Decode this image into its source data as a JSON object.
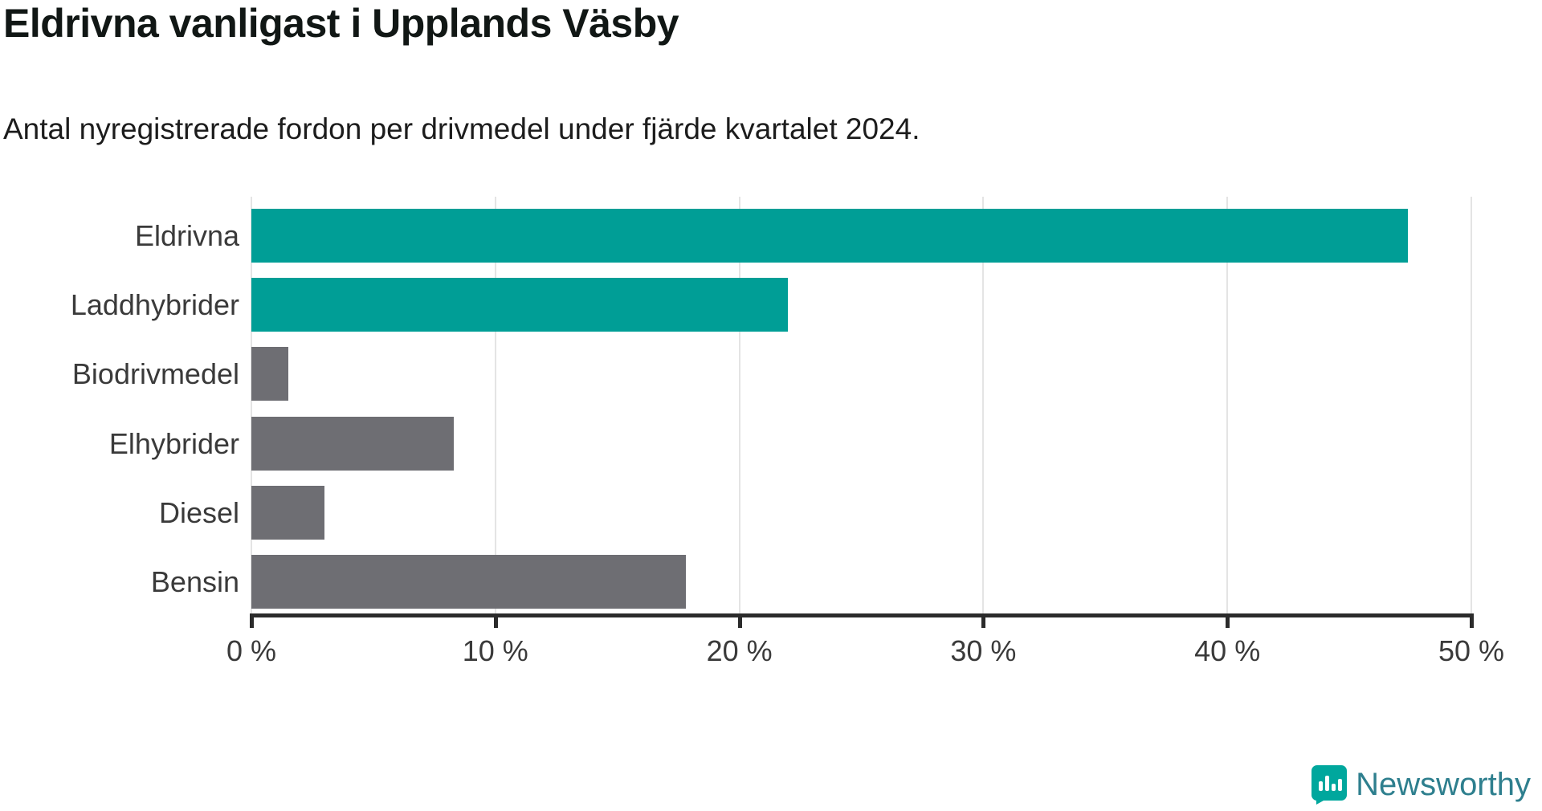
{
  "header": {
    "title": "Eldrivna vanligast i Upplands Väsby",
    "subtitle": "Antal nyregistrerade fordon per drivmedel under fjärde kvartalet 2024."
  },
  "chart_data": {
    "type": "bar",
    "orientation": "horizontal",
    "title": "Eldrivna vanligast i Upplands Väsby",
    "subtitle": "Antal nyregistrerade fordon per drivmedel under fjärde kvartalet 2024.",
    "categories": [
      "Eldrivna",
      "Laddhybrider",
      "Biodrivmedel",
      "Elhybrider",
      "Diesel",
      "Bensin"
    ],
    "values": [
      47.4,
      22.0,
      1.5,
      8.3,
      3.0,
      17.8
    ],
    "unit": "%",
    "xlabel": "",
    "ylabel": "",
    "xlim": [
      0,
      50
    ],
    "x_ticks": [
      0,
      10,
      20,
      30,
      40,
      50
    ],
    "x_tick_labels": [
      "0 %",
      "10 %",
      "20 %",
      "30 %",
      "40 %",
      "50 %"
    ],
    "bar_colors": [
      "#009e96",
      "#009e96",
      "#6e6e73",
      "#6e6e73",
      "#6e6e73",
      "#6e6e73"
    ],
    "grid": true,
    "legend": "none"
  },
  "colors": {
    "accent_teal": "#009e96",
    "bar_gray": "#6e6e73",
    "axis": "#2b2b2b",
    "gridline": "#e4e4e4",
    "title_text": "#111715",
    "label_text": "#3a3a3a",
    "logo_icon_teal": "#00a79d",
    "logo_text_teal": "#2e7f8e"
  },
  "footer": {
    "brand": "Newsworthy"
  }
}
